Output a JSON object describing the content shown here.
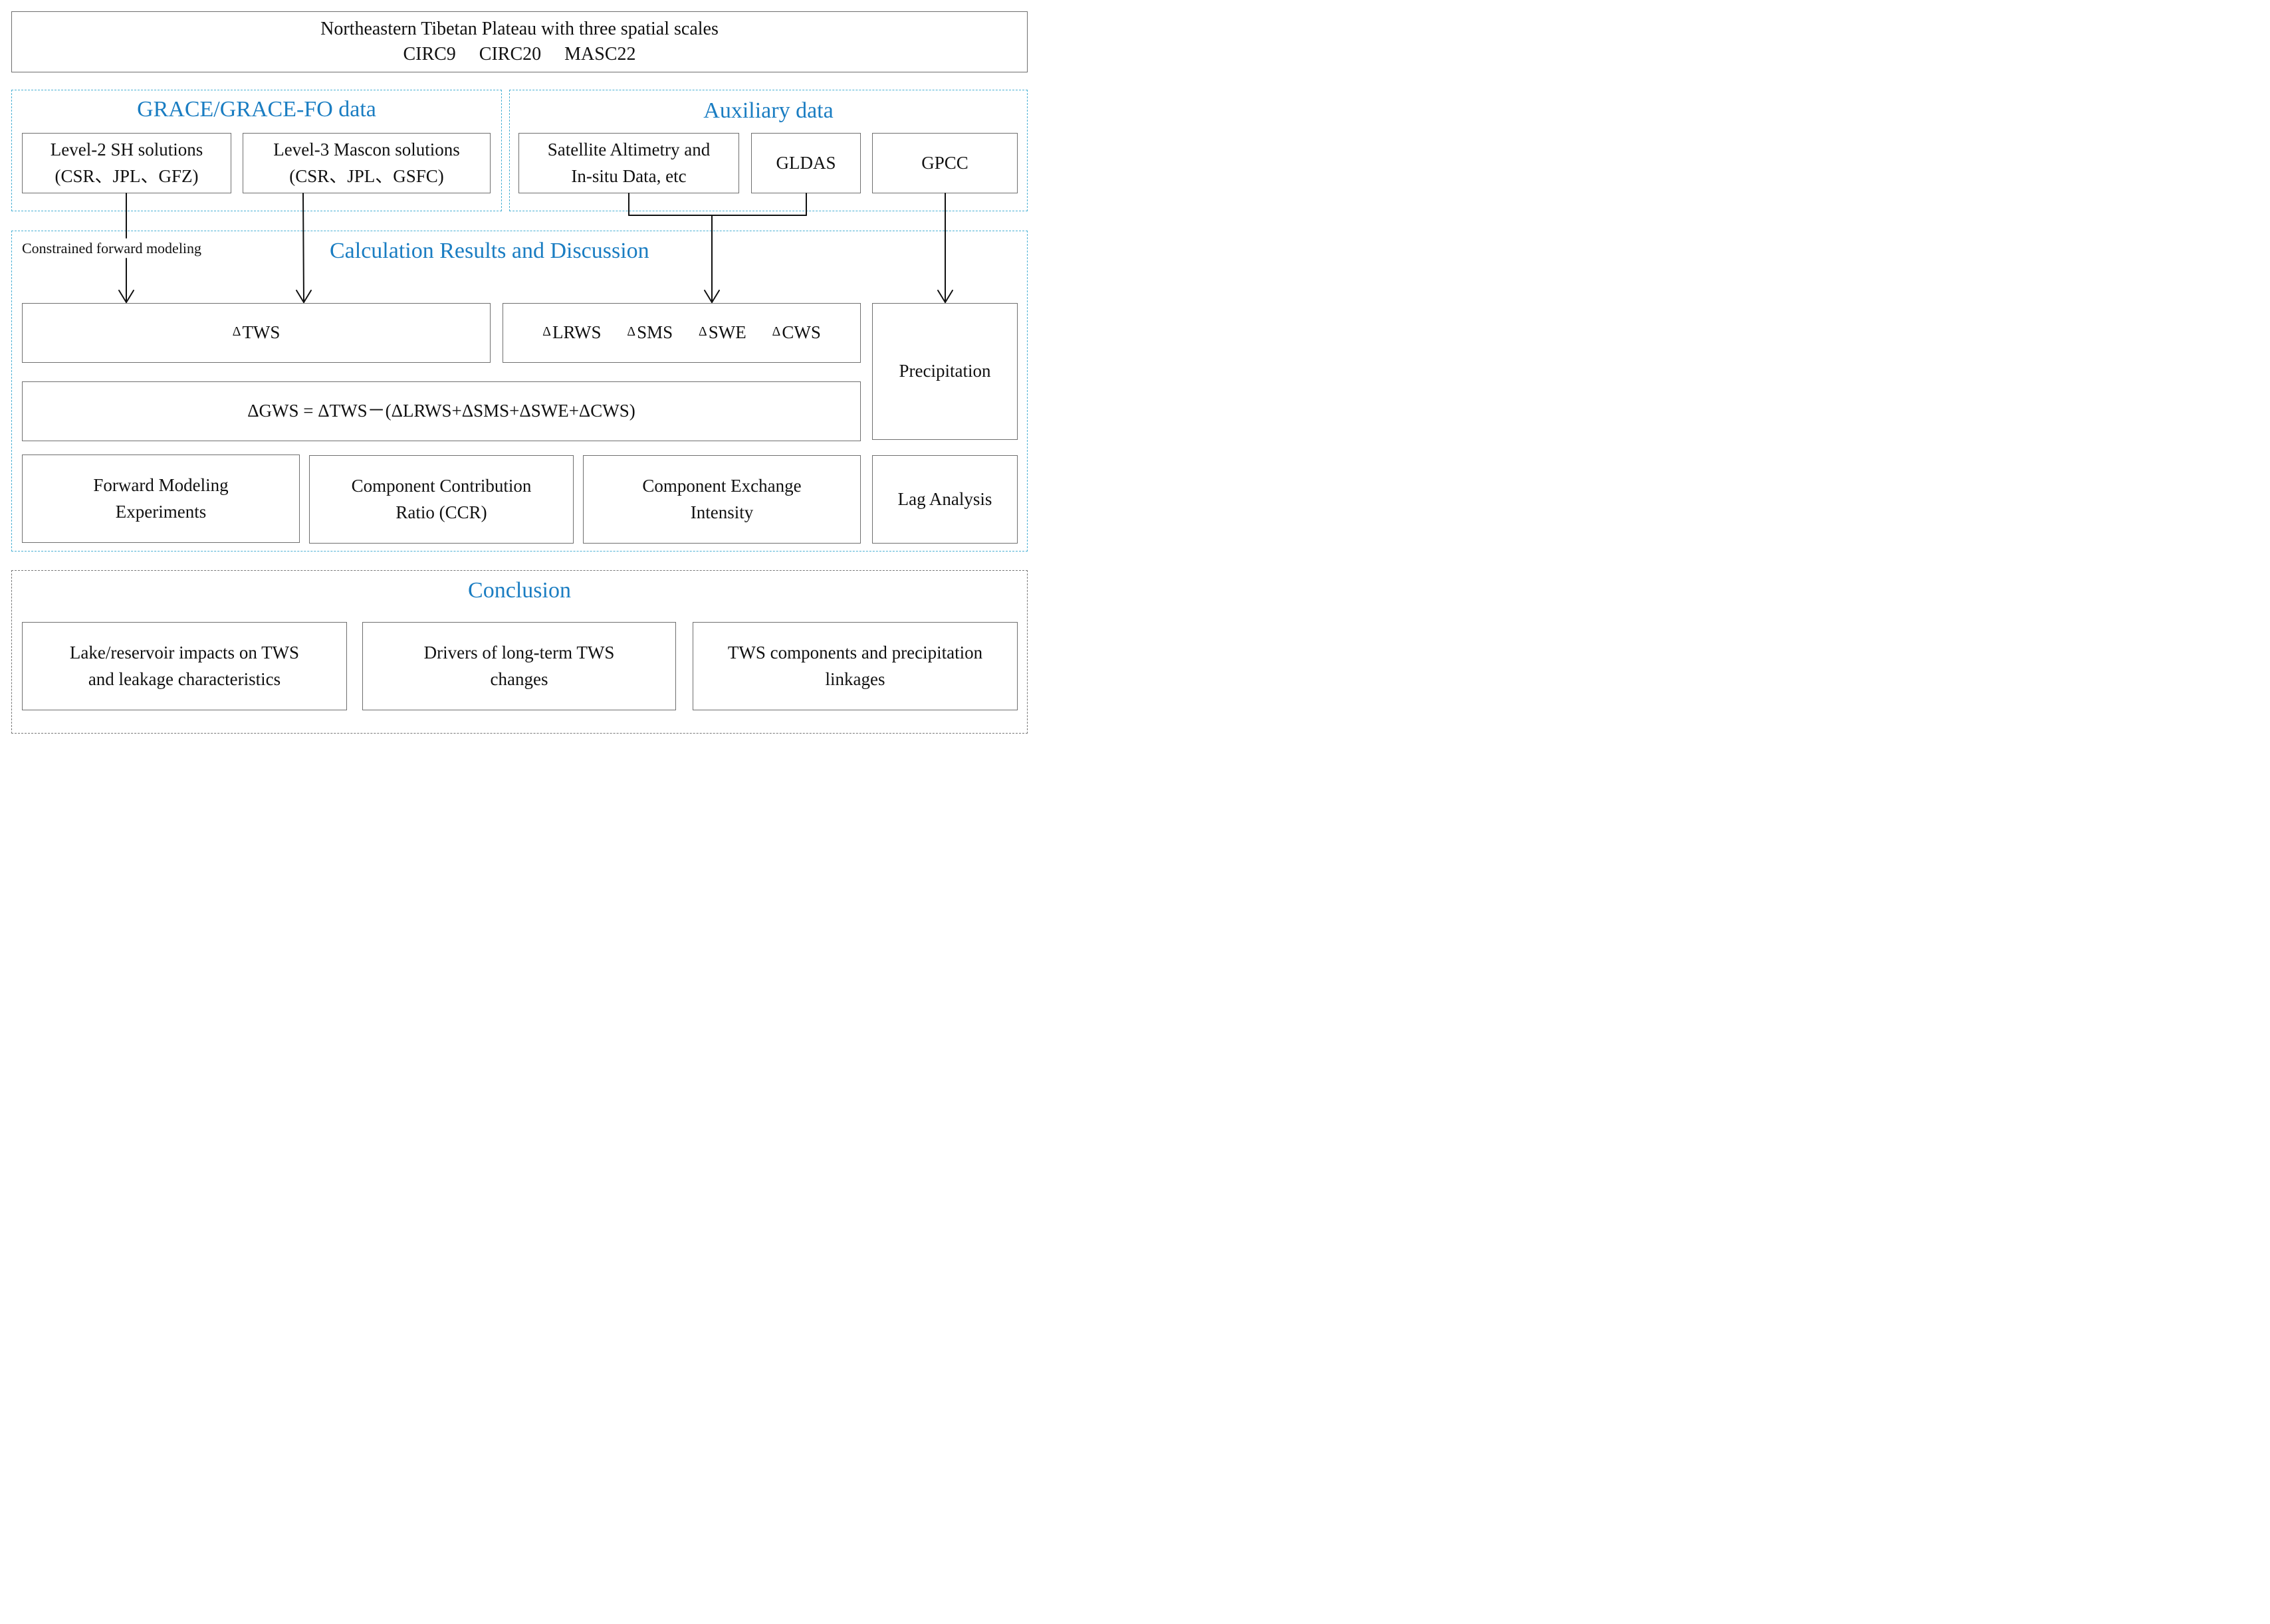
{
  "header": {
    "line1": "Northeastern Tibetan Plateau with three spatial scales",
    "scales": [
      "CIRC9",
      "CIRC20",
      "MASC22"
    ]
  },
  "grace": {
    "title": "GRACE/GRACE-FO data",
    "sh": {
      "line1": "Level-2 SH solutions",
      "line2": "(CSR、JPL、GFZ)"
    },
    "mascon": {
      "line1": "Level-3 Mascon solutions",
      "line2": "(CSR、JPL、GSFC)"
    }
  },
  "auxiliary": {
    "title": "Auxiliary data",
    "altimetry": {
      "line1": "Satellite Altimetry and",
      "line2": "In-situ Data, etc"
    },
    "gldas": "GLDAS",
    "gpcc": "GPCC"
  },
  "calc": {
    "title": "Calculation Results and Discussion",
    "constrained_label": "Constrained forward modeling",
    "delta_symbol": "Δ",
    "tws": "TWS",
    "components": [
      "LRWS",
      "SMS",
      "SWE",
      "CWS"
    ],
    "equation": "ΔGWS = ΔTWS－(ΔLRWS+ΔSMS+ΔSWE+ΔCWS)",
    "precipitation": "Precipitation",
    "forward": {
      "line1": "Forward Modeling",
      "line2": "Experiments"
    },
    "ccr": {
      "line1": "Component Contribution",
      "line2": "Ratio (CCR)"
    },
    "exchange": {
      "line1": "Component Exchange",
      "line2": "Intensity"
    },
    "lag": "Lag Analysis"
  },
  "conclusion": {
    "title": "Conclusion",
    "items": [
      {
        "line1": "Lake/reservoir impacts on TWS",
        "line2": "and leakage characteristics"
      },
      {
        "line1": "Drivers of long-term TWS",
        "line2": "changes"
      },
      {
        "line1": "TWS components and precipitation",
        "line2": "linkages"
      }
    ]
  },
  "colors": {
    "section_title": "#1a7dc2",
    "dashed_border": "#49b0d4",
    "box_border": "#6f6f6f"
  }
}
